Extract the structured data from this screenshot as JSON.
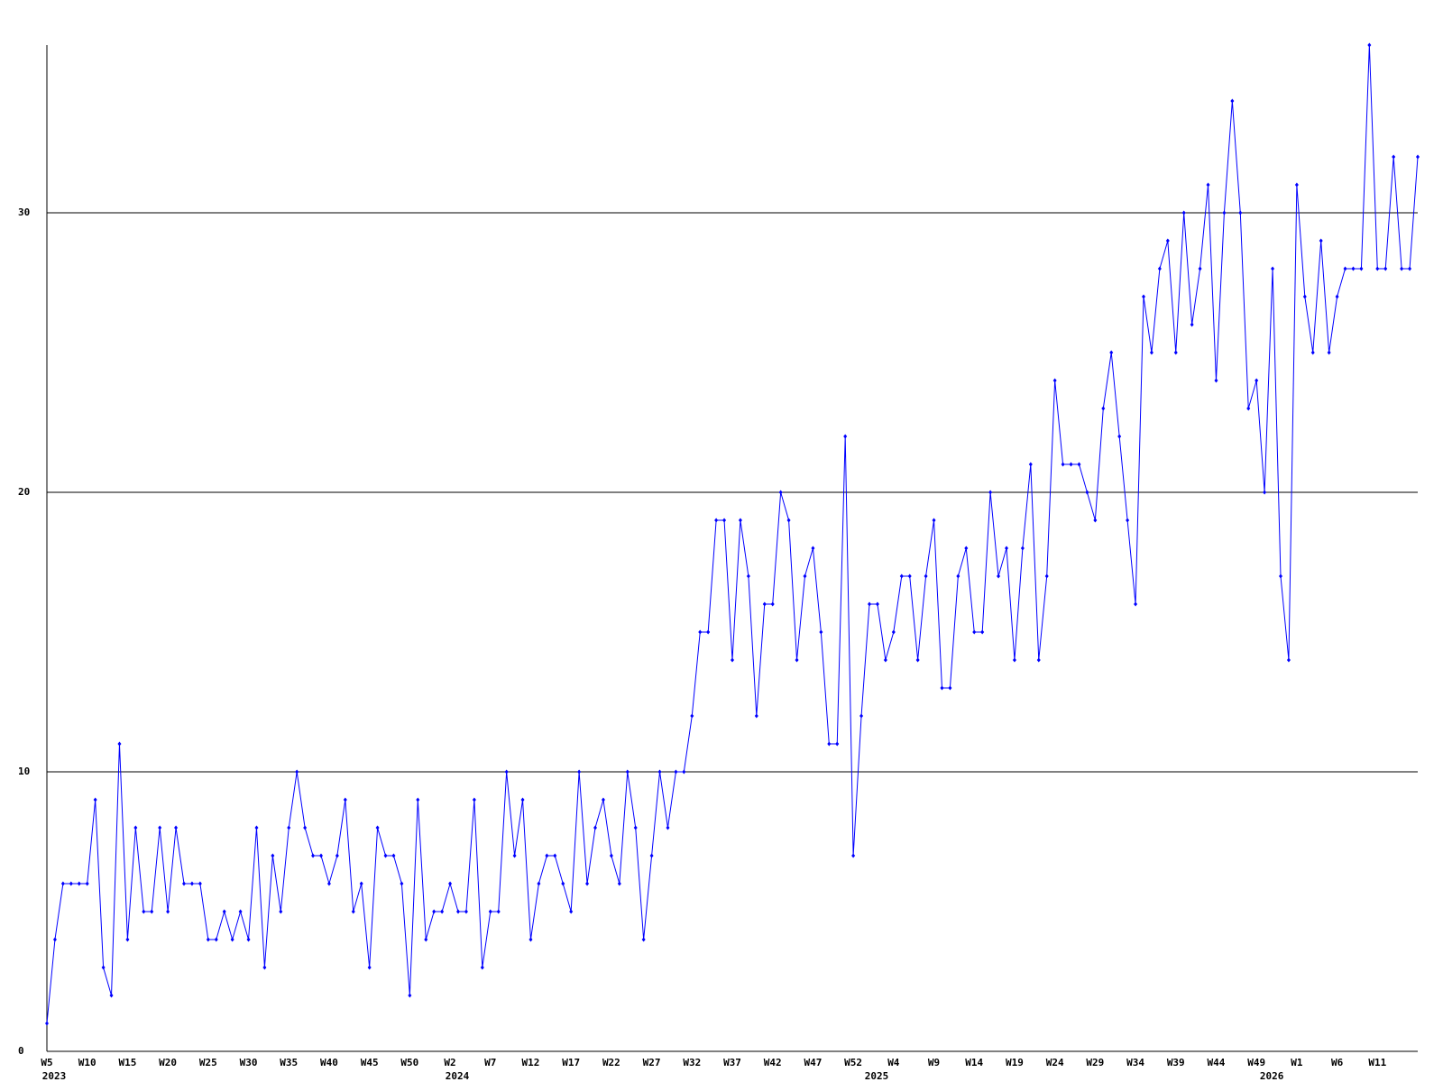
{
  "chart_data": {
    "type": "line",
    "color": "#0000ff",
    "grid": true,
    "ylim": [
      0,
      36
    ],
    "yticks": [
      0,
      10,
      20,
      30
    ],
    "categories": [
      "W5",
      null,
      null,
      null,
      null,
      "W10",
      null,
      null,
      null,
      null,
      "W15",
      null,
      null,
      null,
      null,
      "W20",
      null,
      null,
      null,
      null,
      "W25",
      null,
      null,
      null,
      null,
      "W30",
      null,
      null,
      null,
      null,
      "W35",
      null,
      null,
      null,
      null,
      "W40",
      null,
      null,
      null,
      null,
      "W45",
      null,
      null,
      null,
      null,
      "W50",
      null,
      null,
      null,
      null,
      "W2",
      null,
      null,
      null,
      null,
      "W7",
      null,
      null,
      null,
      null,
      "W12",
      null,
      null,
      null,
      null,
      "W17",
      null,
      null,
      null,
      null,
      "W22",
      null,
      null,
      null,
      null,
      "W27",
      null,
      null,
      null,
      null,
      "W32",
      null,
      null,
      null,
      null,
      "W37",
      null,
      null,
      null,
      null,
      "W42",
      null,
      null,
      null,
      null,
      "W47",
      null,
      null,
      null,
      null,
      "W52",
      null,
      null,
      null,
      null,
      "W4",
      null,
      null,
      null,
      null,
      "W9",
      null,
      null,
      null,
      null,
      "W14",
      null,
      null,
      null,
      null,
      "W19",
      null,
      null,
      null,
      null,
      "W24",
      null,
      null,
      null,
      null,
      "W29",
      null,
      null,
      null,
      null,
      "W34",
      null,
      null,
      null,
      null,
      "W39",
      null,
      null,
      null,
      null,
      "W44",
      null,
      null,
      null,
      null,
      "W49",
      null,
      null,
      null,
      null,
      "W1",
      null,
      null,
      null,
      null,
      "W6",
      null,
      null,
      null,
      null,
      "W11",
      null,
      null,
      null,
      null,
      null
    ],
    "years": [
      "2023",
      null,
      null,
      null,
      null,
      null,
      null,
      null,
      null,
      null,
      null,
      null,
      null,
      null,
      null,
      null,
      null,
      null,
      null,
      null,
      null,
      null,
      null,
      null,
      null,
      null,
      null,
      null,
      null,
      null,
      null,
      null,
      null,
      null,
      null,
      null,
      null,
      null,
      null,
      null,
      null,
      null,
      null,
      null,
      null,
      null,
      null,
      null,
      null,
      null,
      "2024",
      null,
      null,
      null,
      null,
      null,
      null,
      null,
      null,
      null,
      null,
      null,
      null,
      null,
      null,
      null,
      null,
      null,
      null,
      null,
      null,
      null,
      null,
      null,
      null,
      null,
      null,
      null,
      null,
      null,
      null,
      null,
      null,
      null,
      null,
      null,
      null,
      null,
      null,
      null,
      null,
      null,
      null,
      null,
      null,
      null,
      null,
      null,
      null,
      null,
      null,
      null,
      "2025",
      null,
      null,
      null,
      null,
      null,
      null,
      null,
      null,
      null,
      null,
      null,
      null,
      null,
      null,
      null,
      null,
      null,
      null,
      null,
      null,
      null,
      null,
      null,
      null,
      null,
      null,
      null,
      null,
      null,
      null,
      null,
      null,
      null,
      null,
      null,
      null,
      null,
      null,
      null,
      null,
      null,
      null,
      null,
      null,
      null,
      null,
      null,
      null,
      "2026",
      null,
      null,
      null,
      null,
      null,
      null,
      null,
      null,
      null,
      null,
      null,
      null,
      null,
      null,
      null
    ],
    "values": [
      1,
      4,
      6,
      6,
      6,
      6,
      9,
      3,
      2,
      11,
      4,
      8,
      5,
      5,
      8,
      5,
      8,
      6,
      6,
      6,
      4,
      4,
      5,
      4,
      5,
      4,
      8,
      3,
      7,
      5,
      8,
      10,
      8,
      7,
      7,
      6,
      7,
      9,
      5,
      6,
      3,
      8,
      7,
      7,
      6,
      2,
      9,
      4,
      5,
      5,
      6,
      5,
      5,
      9,
      3,
      5,
      5,
      10,
      7,
      9,
      4,
      6,
      7,
      7,
      6,
      5,
      10,
      6,
      8,
      9,
      7,
      6,
      10,
      8,
      4,
      7,
      10,
      8,
      10,
      10,
      12,
      15,
      15,
      19,
      19,
      14,
      19,
      17,
      12,
      16,
      16,
      20,
      19,
      14,
      17,
      18,
      15,
      11,
      11,
      22,
      7,
      12,
      16,
      16,
      14,
      15,
      17,
      17,
      14,
      17,
      19,
      13,
      13,
      17,
      18,
      15,
      15,
      20,
      17,
      18,
      14,
      18,
      21,
      14,
      17,
      24,
      21,
      21,
      21,
      20,
      19,
      23,
      25,
      22,
      19,
      16,
      27,
      25,
      28,
      29,
      25,
      30,
      26,
      28,
      31,
      24,
      30,
      34,
      30,
      23,
      24,
      20,
      28,
      17,
      14,
      31,
      27,
      25,
      29,
      25,
      27,
      28,
      28,
      28,
      36,
      28,
      28,
      32,
      28,
      28,
      32
    ]
  }
}
